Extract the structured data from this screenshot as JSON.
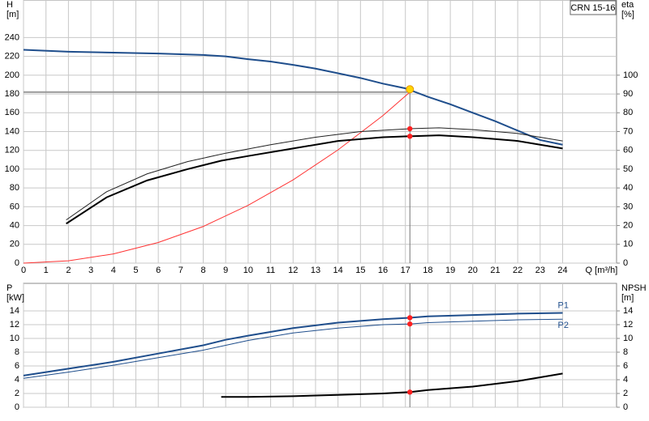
{
  "chart_data": [
    {
      "type": "line",
      "title": "CRN 15-16",
      "y_label": "H",
      "y_unit": "[m]",
      "y2_label": "eta",
      "y2_unit": "[%]",
      "x_label": "Q [m³/h]",
      "xlim": [
        0,
        26.4
      ],
      "xticks": [
        0,
        1,
        2,
        3,
        4,
        5,
        6,
        7,
        8,
        9,
        10,
        11,
        12,
        13,
        14,
        15,
        16,
        17,
        18,
        19,
        20,
        21,
        22,
        23,
        24
      ],
      "show_xtick_labels": true,
      "ylim": [
        0,
        280
      ],
      "yticks": [
        0,
        20,
        40,
        60,
        80,
        100,
        120,
        140,
        160,
        180,
        200,
        220,
        240
      ],
      "y2lim": [
        0,
        140
      ],
      "y2ticks": [
        0,
        10,
        20,
        30,
        40,
        50,
        60,
        70,
        80,
        90,
        100
      ],
      "grid": true,
      "duty": {
        "x": 17.2,
        "y": 182
      },
      "series": [
        {
          "color": "#1f4e8c",
          "width": 2,
          "x": [
            0,
            2,
            4,
            6,
            8,
            9,
            10,
            11,
            12,
            13,
            14,
            15,
            16,
            17,
            18,
            19,
            20,
            21,
            22,
            23,
            24
          ],
          "values": [
            227,
            225,
            224,
            223,
            221.5,
            220,
            217,
            214.5,
            211,
            207,
            202,
            197,
            191,
            186,
            177,
            169,
            160,
            151,
            141,
            131,
            126
          ]
        },
        {
          "color": "#ff3333",
          "width": 1,
          "x": [
            0,
            2,
            4,
            6,
            8,
            10,
            12,
            14,
            16,
            17.2
          ],
          "values": [
            0,
            2.5,
            9.8,
            22,
            39,
            61.5,
            88.6,
            120.5,
            157,
            182
          ]
        },
        {
          "color": "#222222",
          "width": 1,
          "axis": "y2",
          "x": [
            1.9,
            3.7,
            5.5,
            7.3,
            9,
            11,
            13,
            15,
            17.2,
            18.5,
            20,
            22,
            24
          ],
          "values": [
            23,
            38,
            47.5,
            54,
            58.5,
            63,
            67,
            70,
            71.5,
            72,
            71,
            69,
            65
          ]
        },
        {
          "color": "#000000",
          "width": 2,
          "axis": "y2",
          "x": [
            1.9,
            3.7,
            5.5,
            7.3,
            8.8,
            10,
            12,
            14,
            16,
            17.2,
            18.5,
            20,
            22,
            24
          ],
          "values": [
            21,
            35,
            44,
            50,
            54.5,
            57,
            61,
            65,
            67,
            67.5,
            68,
            67,
            65,
            61
          ]
        }
      ],
      "markers": [
        {
          "x": 17.2,
          "y": 185,
          "color": "#ffd700"
        },
        {
          "x": 17.2,
          "y": 71.5,
          "axis": "y2",
          "color": "#ff2020"
        },
        {
          "x": 17.2,
          "y": 67.5,
          "axis": "y2",
          "color": "#ff2020"
        }
      ]
    },
    {
      "type": "line",
      "y_label": "P",
      "y_unit": "[kW]",
      "y2_label": "NPSH",
      "y2_unit": "[m]",
      "xlim": [
        0,
        26.4
      ],
      "xticks": [
        0,
        1,
        2,
        3,
        4,
        5,
        6,
        7,
        8,
        9,
        10,
        11,
        12,
        13,
        14,
        15,
        16,
        17,
        18,
        19,
        20,
        21,
        22,
        23,
        24
      ],
      "show_xtick_labels": false,
      "ylim": [
        0,
        18
      ],
      "yticks": [
        0,
        2,
        4,
        6,
        8,
        10,
        12,
        14
      ],
      "y2lim": [
        0,
        18
      ],
      "y2ticks": [
        0,
        2,
        4,
        6,
        8,
        10,
        12,
        14
      ],
      "grid": true,
      "duty": {
        "x": 17.2
      },
      "series": [
        {
          "name": "P1",
          "color": "#1f4e8c",
          "width": 2,
          "x": [
            0,
            2,
            4,
            6,
            8,
            9,
            10,
            12,
            14,
            16,
            17.2,
            18,
            20,
            22,
            24
          ],
          "values": [
            4.6,
            5.6,
            6.6,
            7.8,
            9.0,
            9.8,
            10.4,
            11.5,
            12.3,
            12.8,
            13.0,
            13.2,
            13.4,
            13.6,
            13.7
          ]
        },
        {
          "name": "P2",
          "color": "#1f4e8c",
          "width": 1,
          "x": [
            0,
            2,
            4,
            6,
            8,
            9,
            10,
            12,
            14,
            16,
            17.2,
            18,
            20,
            22,
            24
          ],
          "values": [
            4.2,
            5.1,
            6.1,
            7.2,
            8.3,
            9.0,
            9.7,
            10.8,
            11.5,
            12.0,
            12.1,
            12.3,
            12.5,
            12.7,
            12.8
          ]
        },
        {
          "color": "#000000",
          "width": 2,
          "axis": "y2",
          "x": [
            8.8,
            10,
            12,
            14,
            16,
            17.2,
            18,
            20,
            22,
            24
          ],
          "values": [
            1.5,
            1.5,
            1.6,
            1.8,
            2.0,
            2.2,
            2.5,
            3.0,
            3.8,
            4.9
          ]
        }
      ],
      "markers": [
        {
          "x": 17.2,
          "y": 13.0,
          "color": "#ff2020"
        },
        {
          "x": 17.2,
          "y": 12.1,
          "color": "#ff2020"
        },
        {
          "x": 17.2,
          "y": 2.2,
          "axis": "y2",
          "color": "#ff2020"
        }
      ]
    }
  ]
}
